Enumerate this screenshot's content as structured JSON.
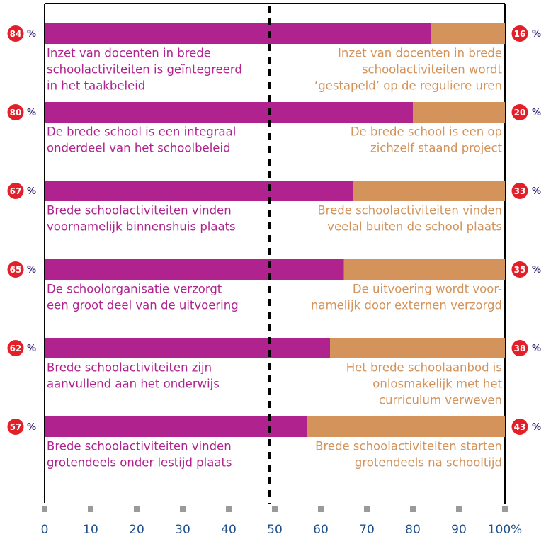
{
  "chart_data": {
    "type": "diverging_bar",
    "unit": "%",
    "xlim": [
      0,
      100
    ],
    "xticks": [
      0,
      10,
      20,
      30,
      40,
      50,
      60,
      70,
      80,
      90,
      {
        "value": 100,
        "label": "100%"
      }
    ],
    "series": [
      {
        "color": "#b0238f",
        "values": [
          84,
          80,
          67,
          65,
          62,
          57
        ],
        "labels": [
          [
            "Inzet van docenten in brede",
            "schoolactiviteiten is geïntegreerd",
            "in het taakbeleid"
          ],
          [
            "De brede school is een integraal",
            "onderdeel van het schoolbeleid"
          ],
          [
            "Brede schoolactiviteiten vinden",
            "voornamelijk binnenshuis plaats"
          ],
          [
            "De schoolorganisatie verzorgt",
            "een groot deel van de uitvoering"
          ],
          [
            "Brede schoolactiviteiten zijn",
            "aanvullend aan het onderwijs"
          ],
          [
            "Brede schoolactiviteiten vinden",
            "grotendeels onder lestijd plaats"
          ]
        ]
      },
      {
        "color": "#d3935a",
        "values": [
          16,
          20,
          33,
          35,
          38,
          43
        ],
        "labels": [
          [
            "Inzet van docenten in brede",
            "schoolactiviteiten wordt",
            "‘gestapeld’ op de reguliere uren"
          ],
          [
            "De brede school is een op",
            "zichzelf staand project"
          ],
          [
            "Brede schoolactiviteiten vinden",
            "veelal buiten de school plaats"
          ],
          [
            "De uitvoering wordt voor-",
            "namelijk door externen verzorgd"
          ],
          [
            "Het brede schoolaanbod is",
            "onlosmakelijk met het",
            "curriculum verweven"
          ],
          [
            "Brede schoolactiviteiten starten",
            "grotendeels na schooltijd"
          ]
        ]
      }
    ]
  }
}
